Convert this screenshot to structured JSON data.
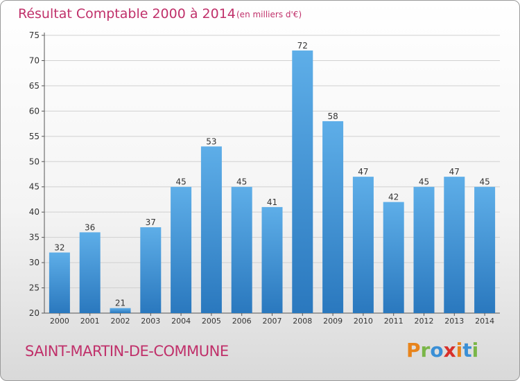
{
  "chart_data": {
    "type": "bar",
    "title": "Résultat Comptable 2000 à 2014",
    "subtitle": "(en milliers d'€)",
    "categories": [
      "2000",
      "2001",
      "2002",
      "2003",
      "2004",
      "2005",
      "2006",
      "2007",
      "2008",
      "2009",
      "2010",
      "2011",
      "2012",
      "2013",
      "2014"
    ],
    "values": [
      32,
      36,
      21,
      37,
      45,
      53,
      45,
      41,
      72,
      58,
      47,
      42,
      45,
      47,
      45
    ],
    "ylim": [
      20,
      75
    ],
    "yticks": [
      20,
      25,
      30,
      35,
      40,
      45,
      50,
      55,
      60,
      65,
      70,
      75
    ],
    "grid": true,
    "bar_color_top": "#5eaee8",
    "bar_color_bottom": "#2a78be"
  },
  "footer": {
    "commune": "SAINT-MARTIN-DE-COMMUNE",
    "logo_text": "Proxiti",
    "logo_colors": [
      "#e8841c",
      "#7ab648",
      "#3a8fd6",
      "#d8302a",
      "#e8841c",
      "#3a8fd6",
      "#7ab648"
    ]
  }
}
